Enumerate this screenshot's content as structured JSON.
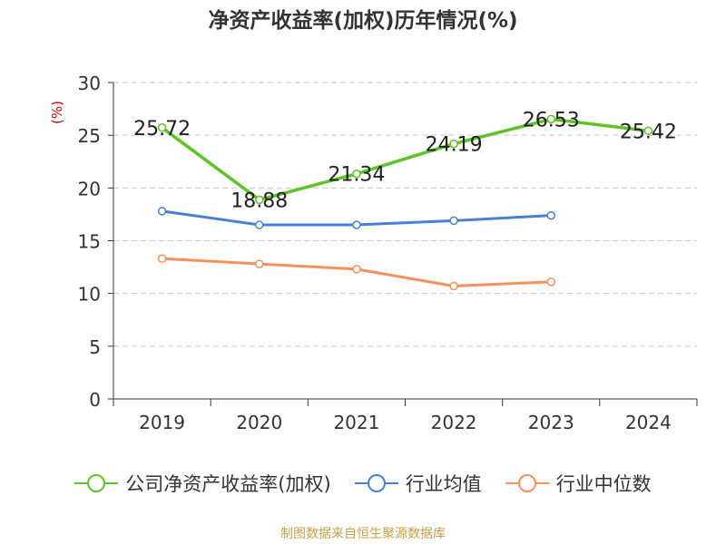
{
  "chart_data": {
    "type": "line",
    "title": "净资产收益率(加权)历年情况(%)",
    "ylabel": "(%)",
    "xlabel": "",
    "ylim": [
      0,
      30
    ],
    "yticks": [
      0,
      5,
      10,
      15,
      20,
      25,
      30
    ],
    "categories": [
      "2019",
      "2020",
      "2021",
      "2022",
      "2023",
      "2024"
    ],
    "grid": true,
    "legend_position": "bottom",
    "series": [
      {
        "name": "公司净资产收益率(加权)",
        "color": "#5cc424",
        "values": [
          25.72,
          18.88,
          21.34,
          24.19,
          26.53,
          25.42
        ],
        "labels": [
          "25.72",
          "18.88",
          "21.34",
          "24.19",
          "26.53",
          "25.42"
        ],
        "show_labels": true
      },
      {
        "name": "行业均值",
        "color": "#4a80d4",
        "values": [
          17.8,
          16.5,
          16.5,
          16.9,
          17.4,
          null
        ],
        "show_labels": false
      },
      {
        "name": "行业中位数",
        "color": "#f5915a",
        "values": [
          13.3,
          12.8,
          12.3,
          10.7,
          11.1,
          null
        ],
        "show_labels": false
      }
    ]
  },
  "footer": {
    "source": "制图数据来自恒生聚源数据库"
  },
  "colors": {
    "axis": "#333333",
    "grid": "#cccccc",
    "ylabel": "#cc0000",
    "source": "#c9a04a"
  }
}
